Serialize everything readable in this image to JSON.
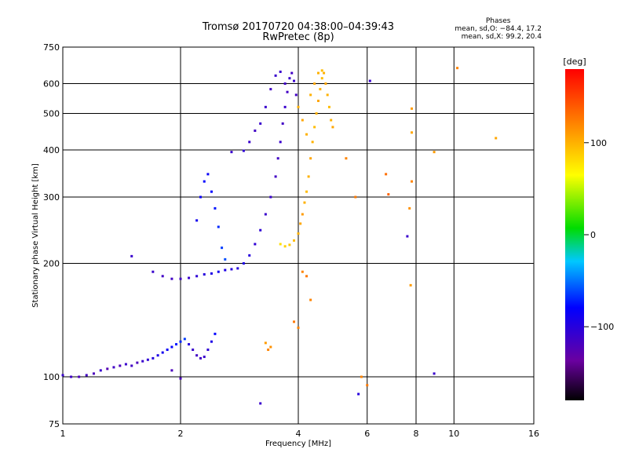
{
  "chart_data": {
    "type": "scatter",
    "title": "Tromsø 20170720 04:38:00–04:39:43",
    "subtitle": "RwPretec (8p)",
    "xlabel": "Frequency [MHz]",
    "ylabel": "Stationary phase Virtual Height [km]",
    "x_scale": "log",
    "y_scale": "log",
    "xlim": [
      1,
      16
    ],
    "ylim": [
      75,
      750
    ],
    "x_ticks": [
      "1",
      "2",
      "4",
      "6",
      "8",
      "10",
      "16"
    ],
    "x_tick_values": [
      1,
      2,
      4,
      6,
      8,
      10,
      16
    ],
    "y_ticks": [
      "75",
      "100",
      "200",
      "300",
      "400",
      "500",
      "600",
      "750"
    ],
    "y_tick_values": [
      75,
      100,
      200,
      300,
      400,
      500,
      600,
      750
    ],
    "grid": true,
    "colorbar": {
      "label": "[deg]",
      "ticks": [
        "100",
        "0",
        "−100"
      ],
      "tick_values": [
        100,
        0,
        -100
      ],
      "range": [
        -180,
        180
      ]
    },
    "phases": {
      "title": "Phases",
      "line1": "mean, sd,O: −84.4, 17.2",
      "line2": "mean, sd,X:  99.2, 20.4"
    },
    "series": [
      {
        "name": "O",
        "points": [
          [
            1.0,
            101,
            -110
          ],
          [
            1.05,
            100,
            -115
          ],
          [
            1.1,
            100,
            -120
          ],
          [
            1.15,
            101,
            -115
          ],
          [
            1.2,
            102,
            -120
          ],
          [
            1.25,
            104,
            -110
          ],
          [
            1.3,
            105,
            -125
          ],
          [
            1.35,
            106,
            -115
          ],
          [
            1.4,
            107,
            -120
          ],
          [
            1.45,
            108,
            -110
          ],
          [
            1.5,
            107,
            -115
          ],
          [
            1.55,
            109,
            -120
          ],
          [
            1.6,
            110,
            -110
          ],
          [
            1.65,
            111,
            -105
          ],
          [
            1.7,
            112,
            -100
          ],
          [
            1.75,
            114,
            -95
          ],
          [
            1.8,
            116,
            -90
          ],
          [
            1.85,
            118,
            -85
          ],
          [
            1.9,
            120,
            -80
          ],
          [
            1.95,
            122,
            -75
          ],
          [
            2.0,
            124,
            -70
          ],
          [
            2.05,
            126,
            -65
          ],
          [
            2.1,
            122,
            -100
          ],
          [
            2.15,
            118,
            -110
          ],
          [
            2.2,
            114,
            -115
          ],
          [
            2.25,
            112,
            -115
          ],
          [
            2.3,
            113,
            -110
          ],
          [
            2.35,
            118,
            -105
          ],
          [
            2.4,
            124,
            -95
          ],
          [
            2.45,
            130,
            -80
          ],
          [
            1.7,
            190,
            -110
          ],
          [
            1.8,
            185,
            -115
          ],
          [
            1.9,
            182,
            -115
          ],
          [
            2.0,
            182,
            -115
          ],
          [
            2.1,
            183,
            -110
          ],
          [
            2.2,
            185,
            -105
          ],
          [
            2.3,
            187,
            -100
          ],
          [
            2.4,
            188,
            -95
          ],
          [
            2.5,
            190,
            -90
          ],
          [
            2.6,
            192,
            -95
          ],
          [
            2.7,
            193,
            -100
          ],
          [
            2.8,
            194,
            -100
          ],
          [
            2.9,
            200,
            -95
          ],
          [
            3.0,
            210,
            -100
          ],
          [
            3.1,
            225,
            -105
          ],
          [
            3.2,
            245,
            -105
          ],
          [
            3.3,
            270,
            -110
          ],
          [
            3.4,
            300,
            -110
          ],
          [
            3.5,
            340,
            -115
          ],
          [
            3.55,
            380,
            -115
          ],
          [
            3.6,
            420,
            -110
          ],
          [
            3.65,
            470,
            -115
          ],
          [
            3.7,
            520,
            -110
          ],
          [
            3.75,
            570,
            -115
          ],
          [
            3.8,
            620,
            -110
          ],
          [
            3.85,
            640,
            -115
          ],
          [
            3.9,
            610,
            -110
          ],
          [
            3.95,
            560,
            -115
          ],
          [
            3.3,
            520,
            -110
          ],
          [
            3.4,
            580,
            -115
          ],
          [
            3.5,
            630,
            -110
          ],
          [
            3.6,
            645,
            -110
          ],
          [
            3.7,
            600,
            -115
          ],
          [
            2.2,
            260,
            -90
          ],
          [
            2.25,
            300,
            -85
          ],
          [
            2.3,
            330,
            -80
          ],
          [
            2.35,
            345,
            -85
          ],
          [
            2.4,
            310,
            -80
          ],
          [
            2.45,
            280,
            -75
          ],
          [
            2.5,
            250,
            -70
          ],
          [
            2.55,
            220,
            -65
          ],
          [
            2.6,
            205,
            -60
          ],
          [
            2.7,
            395,
            -110
          ],
          [
            2.9,
            398,
            -105
          ],
          [
            3.0,
            420,
            -110
          ],
          [
            3.1,
            450,
            -115
          ],
          [
            3.2,
            470,
            -110
          ],
          [
            1.5,
            209,
            -110
          ],
          [
            5.7,
            90,
            -100
          ],
          [
            6.1,
            610,
            -110
          ],
          [
            7.6,
            236,
            -110
          ],
          [
            8.9,
            102,
            -110
          ],
          [
            3.2,
            85,
            -110
          ],
          [
            1.9,
            104,
            -120
          ],
          [
            2.0,
            99,
            -120
          ]
        ]
      },
      {
        "name": "X",
        "points": [
          [
            3.6,
            225,
            80
          ],
          [
            3.7,
            222,
            85
          ],
          [
            3.8,
            224,
            90
          ],
          [
            3.9,
            230,
            95
          ],
          [
            4.0,
            240,
            100
          ],
          [
            4.05,
            255,
            105
          ],
          [
            4.1,
            270,
            110
          ],
          [
            4.15,
            290,
            100
          ],
          [
            4.2,
            310,
            95
          ],
          [
            4.25,
            340,
            100
          ],
          [
            4.3,
            380,
            105
          ],
          [
            4.35,
            420,
            100
          ],
          [
            4.4,
            460,
            95
          ],
          [
            4.45,
            500,
            100
          ],
          [
            4.5,
            540,
            105
          ],
          [
            4.55,
            580,
            100
          ],
          [
            4.6,
            620,
            95
          ],
          [
            4.65,
            640,
            100
          ],
          [
            4.7,
            600,
            105
          ],
          [
            4.75,
            560,
            100
          ],
          [
            4.8,
            520,
            95
          ],
          [
            4.85,
            480,
            100
          ],
          [
            4.9,
            460,
            105
          ],
          [
            4.3,
            560,
            100
          ],
          [
            4.4,
            600,
            105
          ],
          [
            4.5,
            640,
            100
          ],
          [
            4.6,
            650,
            95
          ],
          [
            4.0,
            520,
            100
          ],
          [
            4.1,
            480,
            105
          ],
          [
            4.2,
            440,
            100
          ],
          [
            4.1,
            190,
            120
          ],
          [
            4.2,
            185,
            125
          ],
          [
            4.3,
            160,
            120
          ],
          [
            3.9,
            140,
            125
          ],
          [
            4.0,
            135,
            120
          ],
          [
            3.3,
            123,
            110
          ],
          [
            3.4,
            120,
            115
          ],
          [
            3.35,
            118,
            120
          ],
          [
            6.7,
            345,
            130
          ],
          [
            6.8,
            305,
            135
          ],
          [
            7.8,
            330,
            120
          ],
          [
            7.7,
            280,
            115
          ],
          [
            7.75,
            175,
            110
          ],
          [
            7.8,
            445,
            105
          ],
          [
            7.8,
            515,
            110
          ],
          [
            8.9,
            395,
            110
          ],
          [
            10.2,
            660,
            120
          ],
          [
            12.8,
            430,
            105
          ],
          [
            5.3,
            380,
            120
          ],
          [
            5.6,
            300,
            125
          ],
          [
            5.8,
            100,
            120
          ],
          [
            6.0,
            95,
            125
          ]
        ]
      }
    ]
  }
}
